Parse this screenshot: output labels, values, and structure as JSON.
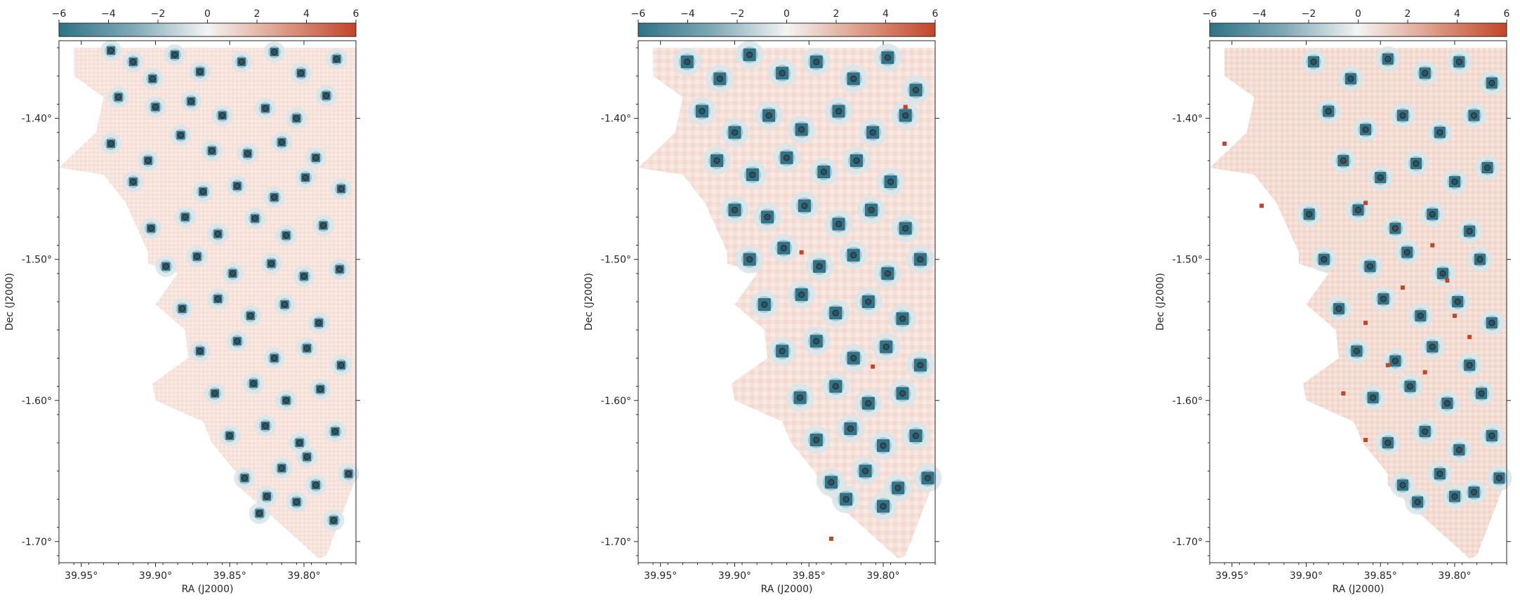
{
  "figure": {
    "colorscale": {
      "min": -6,
      "max": 6,
      "ticks": [
        "−6",
        "−4",
        "−2",
        "0",
        "2",
        "4",
        "6"
      ],
      "colors": {
        "negative": "#2e7387",
        "neutral": "#f4f4f4",
        "positive": "#c2452a"
      }
    },
    "source_marker_color": "#3b4347",
    "axes_labels": {
      "xlabel": "RA (J2000)",
      "ylabel": "Dec (J2000)"
    }
  },
  "chart_data": [
    {
      "type": "heatmap",
      "title": "",
      "xlabel": "RA (J2000)",
      "ylabel": "Dec (J2000)",
      "xlim": [
        39.965,
        39.765
      ],
      "ylim": [
        -1.715,
        -1.345
      ],
      "x_ticks": [
        "39.95°",
        "39.90°",
        "39.85°",
        "39.80°"
      ],
      "y_ticks": [
        "-1.40°",
        "-1.50°",
        "-1.60°",
        "-1.70°"
      ],
      "colorbar": {
        "min": -6,
        "max": 6,
        "ticks": [
          "−6",
          "−4",
          "−2",
          "0",
          "2",
          "4",
          "6"
        ]
      },
      "sources": [
        [
          39.93,
          -1.352
        ],
        [
          39.915,
          -1.36
        ],
        [
          39.902,
          -1.372
        ],
        [
          39.887,
          -1.355
        ],
        [
          39.87,
          -1.367
        ],
        [
          39.842,
          -1.36
        ],
        [
          39.82,
          -1.353
        ],
        [
          39.802,
          -1.368
        ],
        [
          39.778,
          -1.358
        ],
        [
          39.925,
          -1.385
        ],
        [
          39.9,
          -1.392
        ],
        [
          39.876,
          -1.388
        ],
        [
          39.855,
          -1.398
        ],
        [
          39.826,
          -1.393
        ],
        [
          39.805,
          -1.4
        ],
        [
          39.785,
          -1.384
        ],
        [
          39.93,
          -1.418
        ],
        [
          39.905,
          -1.43
        ],
        [
          39.883,
          -1.412
        ],
        [
          39.862,
          -1.423
        ],
        [
          39.838,
          -1.425
        ],
        [
          39.815,
          -1.417
        ],
        [
          39.792,
          -1.428
        ],
        [
          39.915,
          -1.445
        ],
        [
          39.868,
          -1.452
        ],
        [
          39.845,
          -1.448
        ],
        [
          39.82,
          -1.456
        ],
        [
          39.799,
          -1.442
        ],
        [
          39.775,
          -1.45
        ],
        [
          39.903,
          -1.478
        ],
        [
          39.88,
          -1.47
        ],
        [
          39.858,
          -1.482
        ],
        [
          39.833,
          -1.471
        ],
        [
          39.812,
          -1.483
        ],
        [
          39.787,
          -1.476
        ],
        [
          39.893,
          -1.505
        ],
        [
          39.872,
          -1.498
        ],
        [
          39.848,
          -1.51
        ],
        [
          39.822,
          -1.503
        ],
        [
          39.8,
          -1.512
        ],
        [
          39.776,
          -1.507
        ],
        [
          39.882,
          -1.535
        ],
        [
          39.858,
          -1.528
        ],
        [
          39.836,
          -1.54
        ],
        [
          39.813,
          -1.532
        ],
        [
          39.79,
          -1.545
        ],
        [
          39.87,
          -1.565
        ],
        [
          39.845,
          -1.558
        ],
        [
          39.82,
          -1.57
        ],
        [
          39.798,
          -1.563
        ],
        [
          39.775,
          -1.575
        ],
        [
          39.86,
          -1.595
        ],
        [
          39.834,
          -1.588
        ],
        [
          39.812,
          -1.6
        ],
        [
          39.789,
          -1.592
        ],
        [
          39.85,
          -1.625
        ],
        [
          39.826,
          -1.618
        ],
        [
          39.803,
          -1.63
        ],
        [
          39.779,
          -1.622
        ],
        [
          39.84,
          -1.655
        ],
        [
          39.815,
          -1.648
        ],
        [
          39.792,
          -1.66
        ],
        [
          39.77,
          -1.652
        ],
        [
          39.83,
          -1.68
        ],
        [
          39.805,
          -1.672
        ],
        [
          39.78,
          -1.685
        ],
        [
          39.825,
          -1.668
        ],
        [
          39.798,
          -1.64
        ]
      ]
    },
    {
      "type": "heatmap",
      "title": "",
      "xlabel": "RA (J2000)",
      "ylabel": "Dec (J2000)",
      "xlim": [
        39.965,
        39.765
      ],
      "ylim": [
        -1.715,
        -1.345
      ],
      "x_ticks": [
        "39.95°",
        "39.90°",
        "39.85°",
        "39.80°"
      ],
      "y_ticks": [
        "-1.40°",
        "-1.50°",
        "-1.60°",
        "-1.70°"
      ],
      "colorbar": {
        "min": -6,
        "max": 6,
        "ticks": [
          "−6",
          "−4",
          "−2",
          "0",
          "2",
          "4",
          "6"
        ]
      },
      "sources": [
        [
          39.932,
          -1.36
        ],
        [
          39.91,
          -1.372
        ],
        [
          39.89,
          -1.355
        ],
        [
          39.868,
          -1.368
        ],
        [
          39.845,
          -1.36
        ],
        [
          39.82,
          -1.372
        ],
        [
          39.797,
          -1.357
        ],
        [
          39.778,
          -1.38
        ],
        [
          39.922,
          -1.395
        ],
        [
          39.9,
          -1.41
        ],
        [
          39.877,
          -1.398
        ],
        [
          39.855,
          -1.408
        ],
        [
          39.83,
          -1.395
        ],
        [
          39.807,
          -1.41
        ],
        [
          39.785,
          -1.398
        ],
        [
          39.912,
          -1.43
        ],
        [
          39.888,
          -1.44
        ],
        [
          39.865,
          -1.428
        ],
        [
          39.84,
          -1.438
        ],
        [
          39.818,
          -1.43
        ],
        [
          39.795,
          -1.445
        ],
        [
          39.9,
          -1.465
        ],
        [
          39.878,
          -1.47
        ],
        [
          39.853,
          -1.462
        ],
        [
          39.83,
          -1.475
        ],
        [
          39.808,
          -1.465
        ],
        [
          39.785,
          -1.478
        ],
        [
          39.89,
          -1.5
        ],
        [
          39.867,
          -1.492
        ],
        [
          39.843,
          -1.505
        ],
        [
          39.82,
          -1.497
        ],
        [
          39.797,
          -1.51
        ],
        [
          39.775,
          -1.5
        ],
        [
          39.88,
          -1.532
        ],
        [
          39.855,
          -1.525
        ],
        [
          39.832,
          -1.538
        ],
        [
          39.81,
          -1.53
        ],
        [
          39.787,
          -1.542
        ],
        [
          39.868,
          -1.565
        ],
        [
          39.845,
          -1.558
        ],
        [
          39.82,
          -1.57
        ],
        [
          39.798,
          -1.562
        ],
        [
          39.775,
          -1.575
        ],
        [
          39.856,
          -1.598
        ],
        [
          39.832,
          -1.59
        ],
        [
          39.81,
          -1.602
        ],
        [
          39.787,
          -1.595
        ],
        [
          39.845,
          -1.628
        ],
        [
          39.822,
          -1.62
        ],
        [
          39.8,
          -1.632
        ],
        [
          39.778,
          -1.625
        ],
        [
          39.835,
          -1.658
        ],
        [
          39.812,
          -1.65
        ],
        [
          39.79,
          -1.662
        ],
        [
          39.77,
          -1.655
        ],
        [
          39.825,
          -1.67
        ],
        [
          39.8,
          -1.675
        ]
      ],
      "hot_pixels": [
        [
          39.785,
          -1.392
        ],
        [
          39.855,
          -1.495
        ],
        [
          39.807,
          -1.576
        ],
        [
          39.835,
          -1.698
        ]
      ]
    },
    {
      "type": "heatmap",
      "title": "",
      "xlabel": "RA (J2000)",
      "ylabel": "Dec (J2000)",
      "xlim": [
        39.965,
        39.765
      ],
      "ylim": [
        -1.715,
        -1.345
      ],
      "x_ticks": [
        "39.95°",
        "39.90°",
        "39.85°",
        "39.80°"
      ],
      "y_ticks": [
        "-1.40°",
        "-1.50°",
        "-1.60°",
        "-1.70°"
      ],
      "colorbar": {
        "min": -6,
        "max": 6,
        "ticks": [
          "−6",
          "−4",
          "−2",
          "0",
          "2",
          "4",
          "6"
        ]
      },
      "sources": [
        [
          39.895,
          -1.36
        ],
        [
          39.87,
          -1.372
        ],
        [
          39.845,
          -1.358
        ],
        [
          39.82,
          -1.368
        ],
        [
          39.797,
          -1.36
        ],
        [
          39.775,
          -1.375
        ],
        [
          39.885,
          -1.395
        ],
        [
          39.86,
          -1.408
        ],
        [
          39.835,
          -1.398
        ],
        [
          39.81,
          -1.41
        ],
        [
          39.787,
          -1.398
        ],
        [
          39.875,
          -1.43
        ],
        [
          39.85,
          -1.442
        ],
        [
          39.826,
          -1.432
        ],
        [
          39.8,
          -1.445
        ],
        [
          39.778,
          -1.435
        ],
        [
          39.898,
          -1.468
        ],
        [
          39.865,
          -1.465
        ],
        [
          39.84,
          -1.478
        ],
        [
          39.815,
          -1.468
        ],
        [
          39.79,
          -1.48
        ],
        [
          39.888,
          -1.5
        ],
        [
          39.857,
          -1.505
        ],
        [
          39.832,
          -1.495
        ],
        [
          39.808,
          -1.51
        ],
        [
          39.783,
          -1.5
        ],
        [
          39.878,
          -1.535
        ],
        [
          39.848,
          -1.528
        ],
        [
          39.823,
          -1.54
        ],
        [
          39.798,
          -1.53
        ],
        [
          39.775,
          -1.545
        ],
        [
          39.866,
          -1.565
        ],
        [
          39.84,
          -1.572
        ],
        [
          39.815,
          -1.562
        ],
        [
          39.79,
          -1.575
        ],
        [
          39.855,
          -1.598
        ],
        [
          39.83,
          -1.59
        ],
        [
          39.805,
          -1.602
        ],
        [
          39.782,
          -1.595
        ],
        [
          39.845,
          -1.63
        ],
        [
          39.82,
          -1.622
        ],
        [
          39.797,
          -1.635
        ],
        [
          39.775,
          -1.625
        ],
        [
          39.835,
          -1.66
        ],
        [
          39.81,
          -1.652
        ],
        [
          39.787,
          -1.665
        ],
        [
          39.77,
          -1.655
        ],
        [
          39.825,
          -1.672
        ],
        [
          39.8,
          -1.668
        ]
      ],
      "hot_pixels": [
        [
          39.955,
          -1.418
        ],
        [
          39.93,
          -1.462
        ],
        [
          39.875,
          -1.43
        ],
        [
          39.86,
          -1.46
        ],
        [
          39.84,
          -1.478
        ],
        [
          39.815,
          -1.49
        ],
        [
          39.86,
          -1.545
        ],
        [
          39.835,
          -1.52
        ],
        [
          39.805,
          -1.515
        ],
        [
          39.82,
          -1.58
        ],
        [
          39.845,
          -1.575
        ],
        [
          39.8,
          -1.54
        ],
        [
          39.79,
          -1.555
        ],
        [
          39.875,
          -1.595
        ],
        [
          39.86,
          -1.628
        ]
      ]
    }
  ]
}
